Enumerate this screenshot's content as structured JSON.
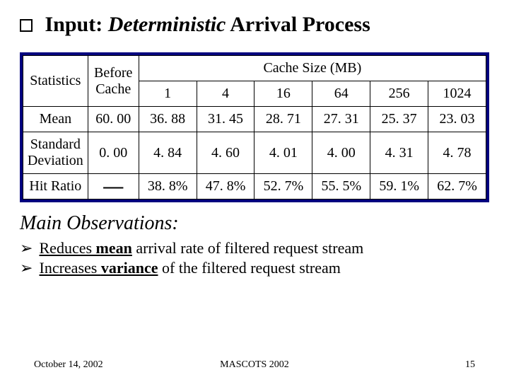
{
  "title": {
    "input": "Input:",
    "deterministic": "Deterministic",
    "rest": "Arrival Process"
  },
  "table": {
    "header": {
      "statistics": "Statistics",
      "before_cache_l1": "Before",
      "before_cache_l2": "Cache",
      "cache_size": "Cache Size (MB)",
      "sizes": [
        "1",
        "4",
        "16",
        "64",
        "256",
        "1024"
      ]
    },
    "rows": [
      {
        "label": "Mean",
        "before": "60. 00",
        "values": [
          "36. 88",
          "31. 45",
          "28. 71",
          "27. 31",
          "25. 37",
          "23. 03"
        ]
      },
      {
        "label_l1": "Standard",
        "label_l2": "Deviation",
        "before": "0. 00",
        "values": [
          "4. 84",
          "4. 60",
          "4. 01",
          "4. 00",
          "4. 31",
          "4. 78"
        ]
      },
      {
        "label": "Hit Ratio",
        "before": "—",
        "values": [
          "38. 8%",
          "47. 8%",
          "52. 7%",
          "55. 5%",
          "59. 1%",
          "62. 7%"
        ]
      }
    ]
  },
  "observations": {
    "heading": "Main Observations:",
    "items": [
      {
        "underline_pre": "Reduces ",
        "underline_bold": "mean",
        "plain": " arrival rate of filtered request stream"
      },
      {
        "underline_pre": "Increases ",
        "underline_bold": "variance",
        "plain": " of the filtered request stream"
      }
    ]
  },
  "footer": {
    "date": "October 14, 2002",
    "venue": "MASCOTS 2002",
    "page": "15"
  },
  "colors": {
    "table_border": "#00007e",
    "text": "#000000",
    "background": "#ffffff"
  }
}
